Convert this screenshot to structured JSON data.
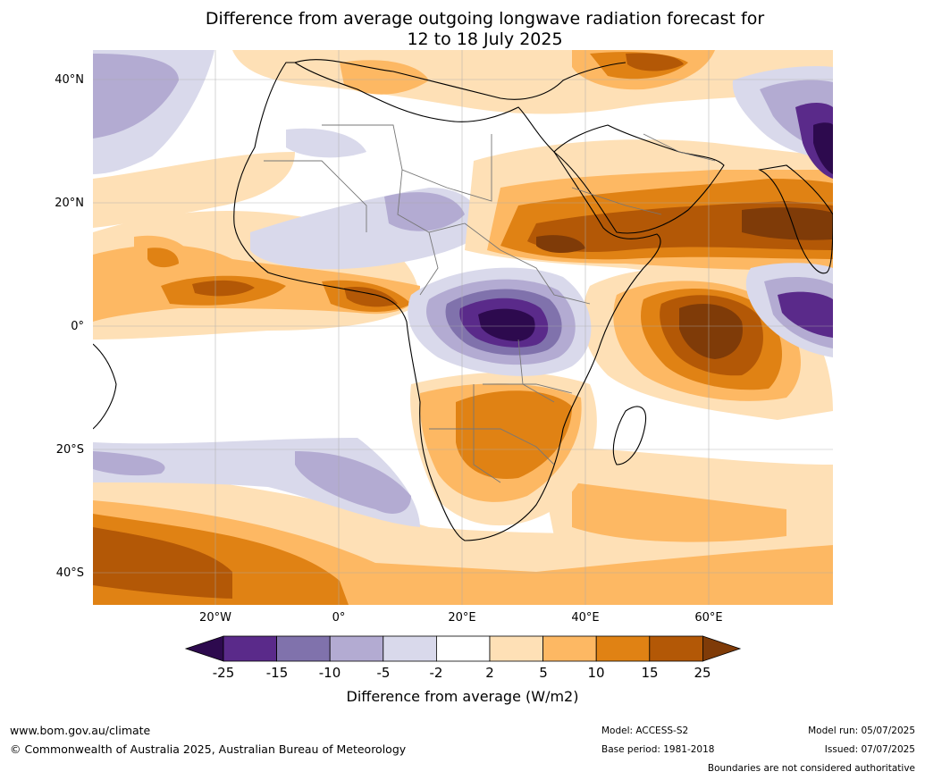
{
  "title": {
    "line1": "Difference from average outgoing longwave radiation forecast for",
    "line2": "12 to 18 July 2025"
  },
  "map": {
    "lat_ticks": [
      "40°N",
      "20°N",
      "0°",
      "20°S",
      "40°S"
    ],
    "lon_ticks": [
      "20°W",
      "0°",
      "20°E",
      "40°E",
      "60°E"
    ],
    "colors": {
      "m25": "#2d0a4e",
      "m15": "#5a2a8a",
      "m10": "#8072ac",
      "m5": "#b3abd2",
      "m2": "#d9d9eb",
      "zero": "#ffffff",
      "p2": "#fee0b6",
      "p5": "#fdb863",
      "p10": "#e08214",
      "p15": "#b35806",
      "p25": "#7f3b08"
    }
  },
  "colorbar": {
    "labels": [
      "-25",
      "-15",
      "-10",
      "-5",
      "-2",
      "2",
      "5",
      "10",
      "15",
      "25"
    ],
    "title": "Difference from average (W/m2)"
  },
  "footer": {
    "website": "www.bom.gov.au/climate",
    "copyright": "© Commonwealth of Australia 2025, Australian Bureau of Meteorology",
    "model": "Model: ACCESS-S2",
    "base_period": "Base period: 1981-2018",
    "model_run": "Model run: 05/07/2025",
    "issued": "Issued: 07/07/2025",
    "disclaimer": "Boundaries are not considered authoritative"
  }
}
